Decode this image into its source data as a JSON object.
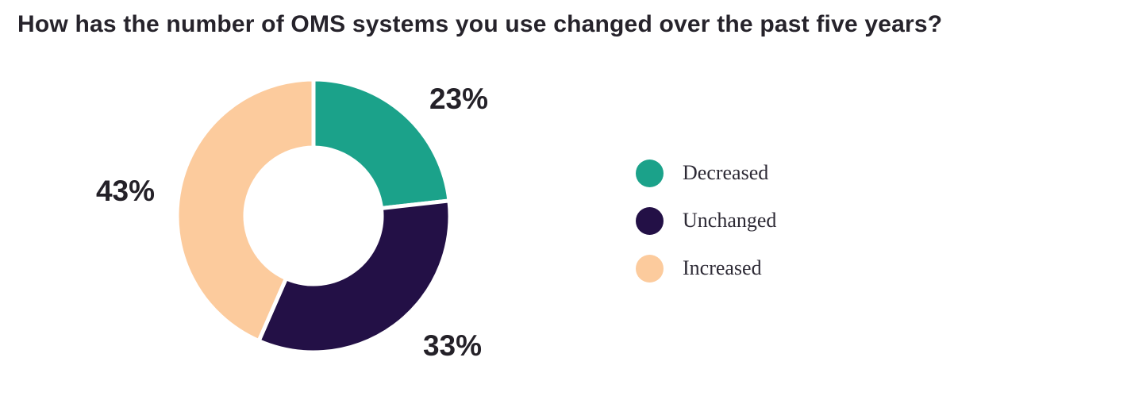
{
  "title": "How has the number of OMS systems you use changed over the past five years?",
  "chart_data": {
    "type": "pie",
    "variant": "donut",
    "title": "How has the number of OMS systems you use changed over the past five years?",
    "categories": [
      "Decreased",
      "Unchanged",
      "Increased"
    ],
    "values": [
      23,
      33,
      43
    ],
    "value_labels": [
      "23%",
      "33%",
      "43%"
    ],
    "colors": [
      "#1BA28A",
      "#231046",
      "#FCCB9D"
    ],
    "start_position": "12-oclock",
    "direction": "clockwise",
    "hole_ratio": 0.5,
    "segment_gap_color": "#FFFFFF",
    "legend_position": "right",
    "legend_shape": "circle"
  },
  "legend": {
    "items": [
      {
        "label": "Decreased",
        "color": "#1BA28A"
      },
      {
        "label": "Unchanged",
        "color": "#231046"
      },
      {
        "label": "Increased",
        "color": "#FCCB9D"
      }
    ]
  },
  "colors": {
    "title_text": "#26232B",
    "value_label_text": "#242128",
    "legend_text": "#2D2A35",
    "background": "#FFFFFF"
  }
}
